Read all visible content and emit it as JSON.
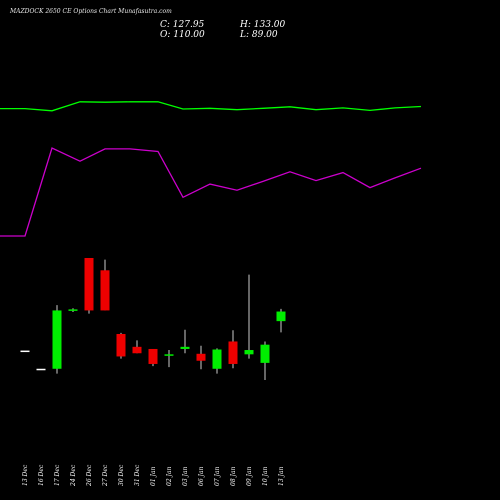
{
  "header": {
    "title": "MAZDOCK 2650 CE Options Chart Munafasutra.com",
    "close": "C: 127.95",
    "open": "O: 110.00",
    "high": "H: 133.00",
    "low": "L: 89.00"
  },
  "chart_data": {
    "type": "candlestick",
    "categories": [
      "13 Dec",
      "16 Dec",
      "17 Dec",
      "24 Dec",
      "26 Dec",
      "27 Dec",
      "30 Dec",
      "31 Dec",
      "01 Jan",
      "02 Jan",
      "03 Jan",
      "06 Jan",
      "07 Jan",
      "08 Jan",
      "09 Jan",
      "10 Jan",
      "13 Jan"
    ],
    "candles": [
      {
        "open": 55,
        "high": 55,
        "low": 55,
        "close": 55
      },
      {
        "open": 21,
        "high": 21,
        "low": 21,
        "close": 21
      },
      {
        "open": 21,
        "high": 140,
        "low": 12,
        "close": 130
      },
      {
        "open": 130,
        "high": 134,
        "low": 127,
        "close": 132
      },
      {
        "open": 228,
        "high": 228,
        "low": 124,
        "close": 130
      },
      {
        "open": 205,
        "high": 225,
        "low": 130,
        "close": 130
      },
      {
        "open": 86,
        "high": 88,
        "low": 40,
        "close": 44
      },
      {
        "open": 62,
        "high": 74,
        "low": 50,
        "close": 50
      },
      {
        "open": 58,
        "high": 58,
        "low": 26,
        "close": 30
      },
      {
        "open": 46,
        "high": 56,
        "low": 24,
        "close": 48
      },
      {
        "open": 58,
        "high": 94,
        "low": 50,
        "close": 62
      },
      {
        "open": 49,
        "high": 64,
        "low": 20,
        "close": 36
      },
      {
        "open": 21,
        "high": 59,
        "low": 12,
        "close": 57
      },
      {
        "open": 72,
        "high": 93,
        "low": 22,
        "close": 30
      },
      {
        "open": 48,
        "high": 197,
        "low": 40,
        "close": 56
      },
      {
        "open": 32,
        "high": 72,
        "low": 0,
        "close": 66
      },
      {
        "open": 110,
        "high": 133,
        "low": 89,
        "close": 127.95
      }
    ],
    "lines": [
      {
        "color": "#00ff00",
        "values": [
          0.76,
          0.76,
          0.7,
          0.95,
          0.94,
          0.95,
          0.95,
          0.75,
          0.77,
          0.73,
          0.77,
          0.81,
          0.73,
          0.78,
          0.71,
          0.78,
          0.82
        ]
      },
      {
        "color": "#cc00cc",
        "values": [
          0.0,
          0.0,
          1.0,
          0.85,
          0.99,
          0.99,
          0.96,
          0.44,
          0.59,
          0.52,
          0.62,
          0.73,
          0.63,
          0.72,
          0.55,
          0.66,
          0.77
        ]
      }
    ],
    "colors": {
      "up": "#00ee00",
      "down": "#ee0000",
      "doji": "#ffffff",
      "background": "#000000"
    }
  }
}
